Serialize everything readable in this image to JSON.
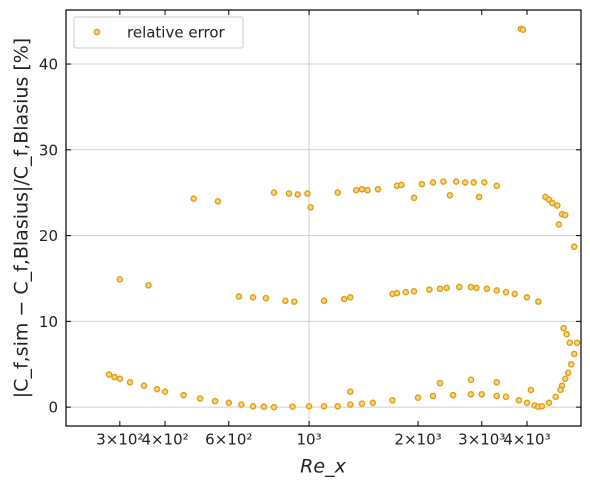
{
  "chart_data": {
    "type": "scatter",
    "xlabel": "Re_x",
    "ylabel": "|C_f,sim − C_f,Blasius|/C_f,Blasius [%]",
    "log_x": true,
    "grid": true,
    "legend": "upper left",
    "xlim": [
      213,
      5640
    ],
    "ylim": [
      -2.2,
      46.3
    ],
    "xticks": [
      {
        "value": 300,
        "label": "3×10²"
      },
      {
        "value": 400,
        "label": "4×10²"
      },
      {
        "value": 600,
        "label": "6×10²"
      },
      {
        "value": 1000,
        "label": "10³"
      },
      {
        "value": 2000,
        "label": "2×10³"
      },
      {
        "value": 3000,
        "label": "3×10³"
      },
      {
        "value": 4000,
        "label": "4×10³"
      }
    ],
    "yticks": [
      0,
      10,
      20,
      30,
      40
    ],
    "series": [
      {
        "name": "relative error",
        "color": "#e0a010",
        "x": [
          280,
          290,
          300,
          320,
          350,
          380,
          400,
          450,
          500,
          550,
          600,
          650,
          700,
          750,
          800,
          900,
          1000,
          1100,
          1200,
          1300,
          1400,
          1500,
          1700,
          2000,
          2200,
          2500,
          2800,
          3000,
          3300,
          3500,
          3800,
          4000,
          4200,
          4300,
          4400,
          4600,
          4800,
          5000,
          5100,
          5200,
          5300,
          5400,
          5500,
          480,
          560,
          800,
          880,
          930,
          990,
          1010,
          1200,
          1350,
          1400,
          1450,
          1550,
          1750,
          1800,
          1950,
          2050,
          2200,
          2350,
          2450,
          2550,
          2700,
          2850,
          2950,
          3050,
          3300,
          4500,
          4600,
          4700,
          4850,
          5000,
          5100,
          4900,
          5400,
          300,
          360,
          640,
          700,
          760,
          860,
          910,
          1100,
          1250,
          1300,
          1700,
          1750,
          1850,
          1950,
          2150,
          2300,
          2400,
          2600,
          2800,
          2900,
          3100,
          3300,
          3500,
          3700,
          4000,
          4300,
          5050,
          5150,
          5250,
          3850,
          3900,
          1300,
          2300,
          2800,
          3300,
          4100,
          4950
        ],
        "y": [
          3.8,
          3.5,
          3.3,
          2.9,
          2.5,
          2.1,
          1.8,
          1.4,
          1.0,
          0.7,
          0.5,
          0.3,
          0.1,
          0.05,
          0,
          0.05,
          0.1,
          0.1,
          0.1,
          0.3,
          0.4,
          0.5,
          0.8,
          1.1,
          1.3,
          1.4,
          1.5,
          1.5,
          1.3,
          1.2,
          0.8,
          0.5,
          0.2,
          0.05,
          0.1,
          0.5,
          1.2,
          2.5,
          3.3,
          4.0,
          5.0,
          6.2,
          7.5,
          24.3,
          24.0,
          25.0,
          24.9,
          24.8,
          24.9,
          23.3,
          25.0,
          25.3,
          25.4,
          25.3,
          25.4,
          25.8,
          25.9,
          24.4,
          26.0,
          26.2,
          26.3,
          24.7,
          26.3,
          26.2,
          26.2,
          24.5,
          26.2,
          25.8,
          24.5,
          24.2,
          23.8,
          23.5,
          22.5,
          22.4,
          21.3,
          18.7,
          14.9,
          14.2,
          12.9,
          12.8,
          12.7,
          12.4,
          12.3,
          12.4,
          12.6,
          12.8,
          13.2,
          13.3,
          13.4,
          13.5,
          13.7,
          13.8,
          13.9,
          14.0,
          14.0,
          13.9,
          13.8,
          13.6,
          13.4,
          13.2,
          12.8,
          12.3,
          9.2,
          8.5,
          7.5,
          44.1,
          44.0,
          1.8,
          2.8,
          3.2,
          2.9,
          2.0,
          2.0
        ]
      }
    ]
  }
}
